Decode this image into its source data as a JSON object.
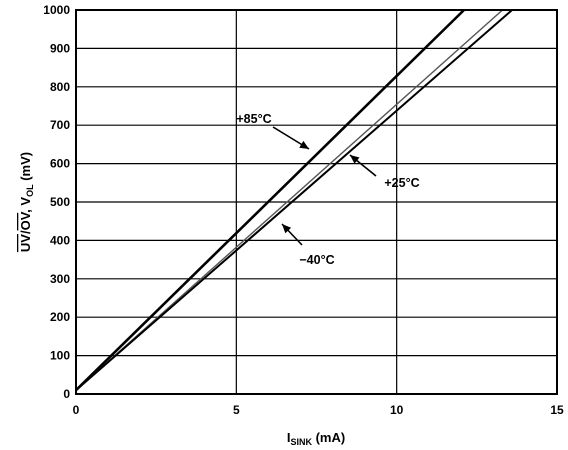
{
  "chart_data": {
    "type": "line",
    "title": "",
    "xlabel": {
      "main": "I",
      "sub": "SINK",
      "unit": " (mA)"
    },
    "ylabel": {
      "overline1": "UV",
      "slash": "/",
      "overline2": "OV",
      "mid": ", V",
      "sub": "OL",
      "unit": " (mV)"
    },
    "xlim": [
      0,
      15
    ],
    "ylim": [
      0,
      1000
    ],
    "x_ticks": [
      "0",
      "5",
      "10",
      "15"
    ],
    "y_ticks": [
      "0",
      "100",
      "200",
      "300",
      "400",
      "500",
      "600",
      "700",
      "800",
      "900",
      "1000"
    ],
    "grid": true,
    "series": [
      {
        "name": "+85°C",
        "color": "#000000",
        "x": [
          0,
          12.1
        ],
        "y": [
          10,
          1000
        ]
      },
      {
        "name": "+25°C",
        "color": "#555555",
        "x": [
          0,
          13.3
        ],
        "y": [
          10,
          1000
        ]
      },
      {
        "name": "-40°C",
        "color": "#000000",
        "x": [
          0,
          13.6
        ],
        "y": [
          10,
          1000
        ]
      }
    ],
    "annotations": [
      {
        "text": "+85°C",
        "series": 0
      },
      {
        "text": "+25°C",
        "series": 1
      },
      {
        "text": "−40°C",
        "series": 2
      }
    ]
  }
}
